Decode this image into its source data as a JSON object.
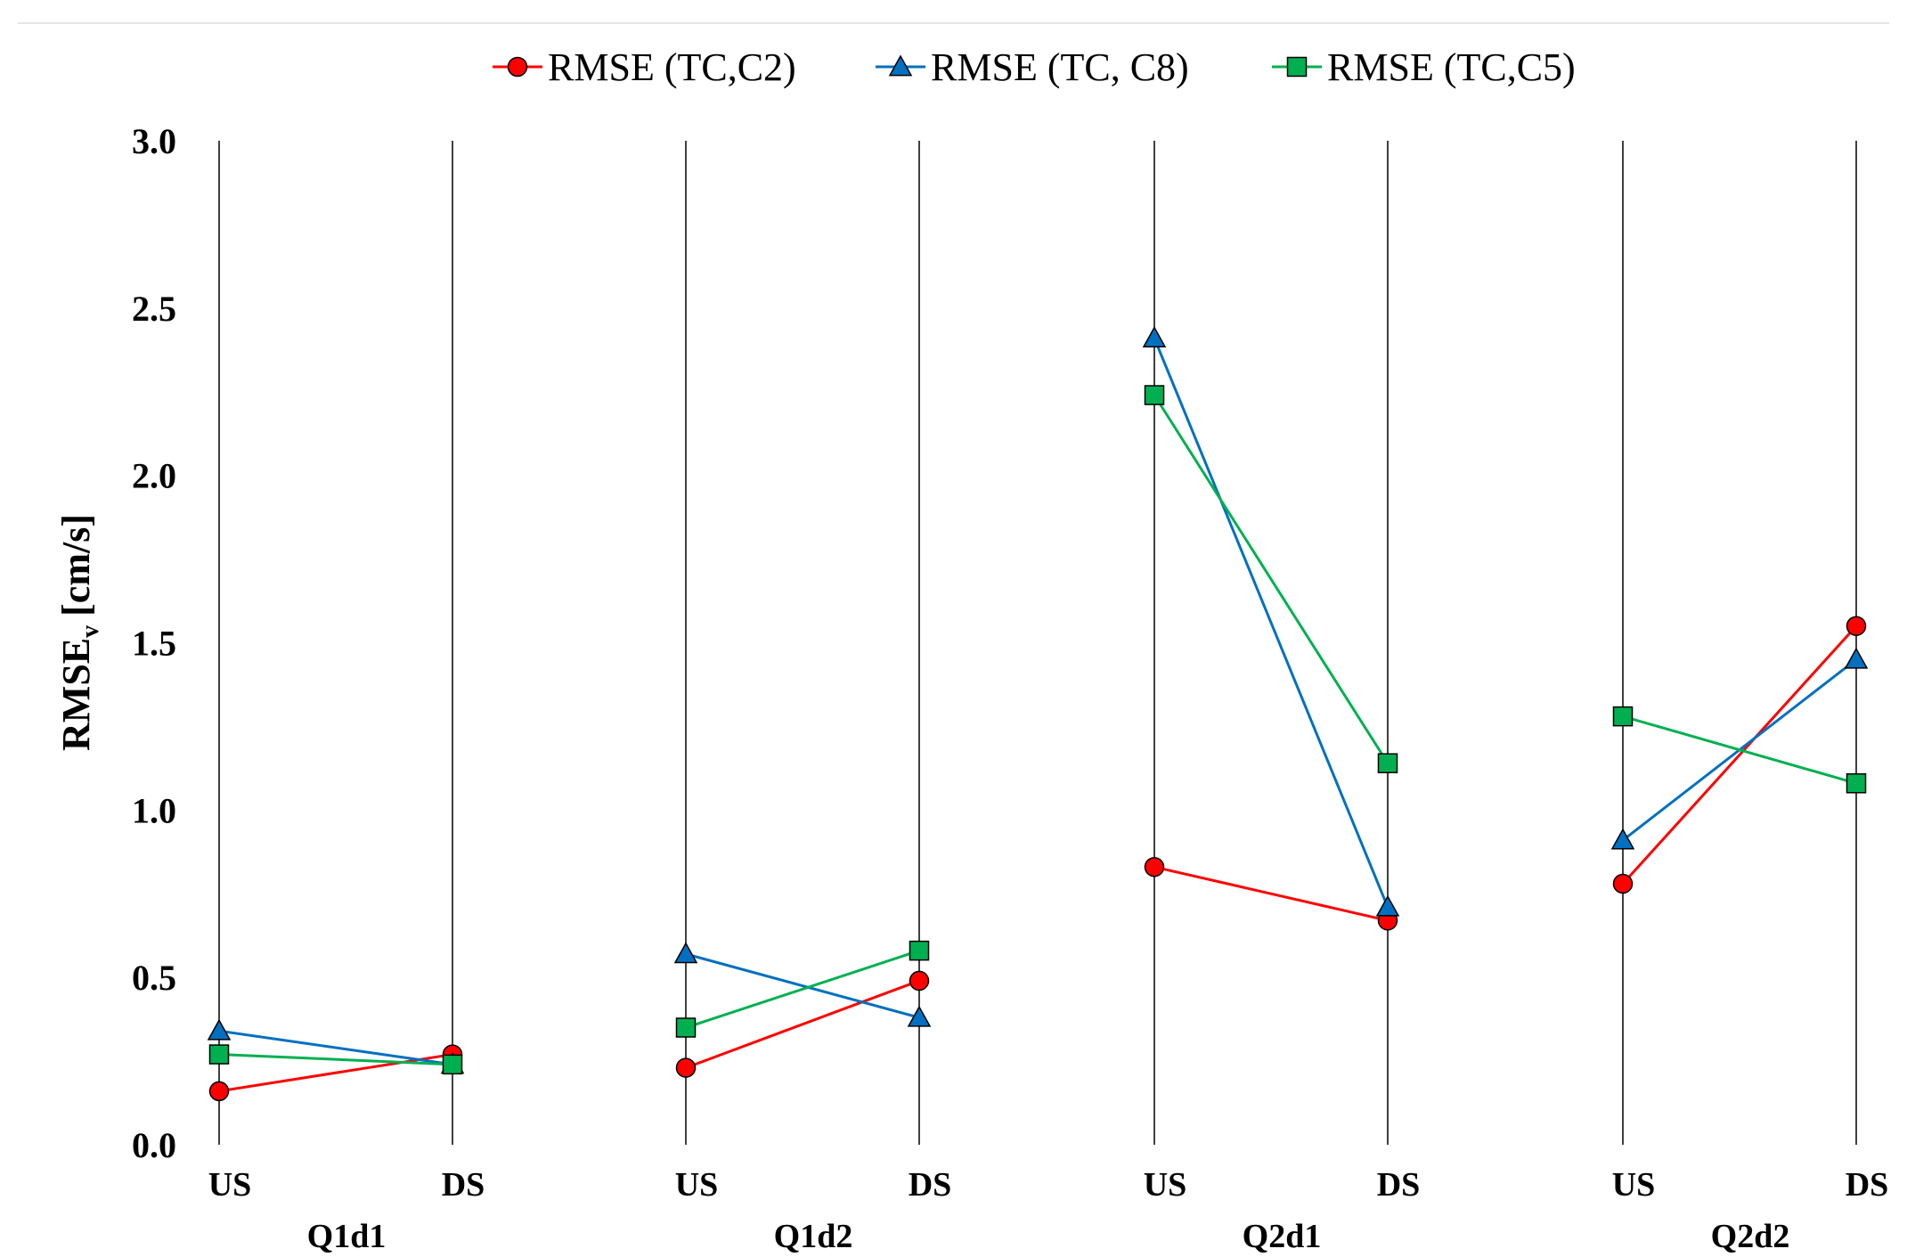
{
  "chart_data": {
    "type": "line",
    "title": "",
    "ylabel": "RMSE",
    "ylabel_subscript": "v",
    "ylabel_unit": "[cm/s]",
    "ylim": [
      0,
      3.0
    ],
    "yticks": [
      "0.0",
      "0.5",
      "1.0",
      "1.5",
      "2.0",
      "2.5",
      "3.0"
    ],
    "groups": [
      {
        "name": "Q1d1",
        "categories": [
          "US",
          "DS"
        ]
      },
      {
        "name": "Q1d2",
        "categories": [
          "US",
          "DS"
        ]
      },
      {
        "name": "Q2d1",
        "categories": [
          "US",
          "DS"
        ]
      },
      {
        "name": "Q2d2",
        "categories": [
          "US",
          "DS"
        ]
      }
    ],
    "legend_position": "top-center",
    "series": [
      {
        "name": "RMSE (TC,C2)",
        "color": "#ff0000",
        "marker": "circle",
        "values": [
          [
            0.16,
            0.27
          ],
          [
            0.23,
            0.49
          ],
          [
            0.83,
            0.67
          ],
          [
            0.78,
            1.55
          ]
        ]
      },
      {
        "name": "RMSE (TC, C8)",
        "color": "#0070c0",
        "marker": "triangle",
        "values": [
          [
            0.34,
            0.24
          ],
          [
            0.57,
            0.38
          ],
          [
            2.41,
            0.71
          ],
          [
            0.91,
            1.45
          ]
        ]
      },
      {
        "name": "RMSE (TC,C5)",
        "color": "#00b050",
        "marker": "square",
        "values": [
          [
            0.27,
            0.24
          ],
          [
            0.35,
            0.58
          ],
          [
            2.24,
            1.14
          ],
          [
            1.28,
            1.08
          ]
        ]
      }
    ]
  }
}
